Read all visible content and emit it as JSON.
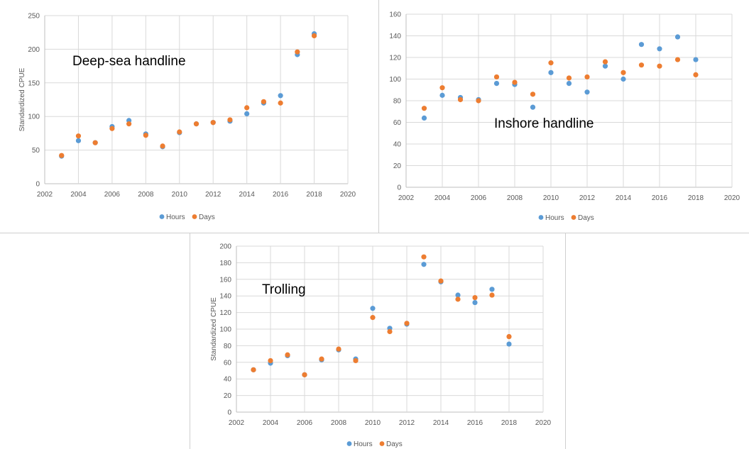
{
  "chart_data": [
    {
      "type": "scatter",
      "title": "Deep-sea handline",
      "ylabel": "Standardized CPUE",
      "xlabel": "",
      "xlim": [
        2002,
        2020
      ],
      "ylim": [
        0,
        250
      ],
      "x_ticks": [
        "2002",
        "2004",
        "2006",
        "2008",
        "2010",
        "2012",
        "2014",
        "2016",
        "2018",
        "2020"
      ],
      "y_ticks": [
        "0",
        "50",
        "100",
        "150",
        "200",
        "250"
      ],
      "legend_position": "bottom",
      "x": [
        2003,
        2004,
        2005,
        2006,
        2007,
        2008,
        2009,
        2010,
        2011,
        2012,
        2013,
        2014,
        2015,
        2016,
        2017,
        2018
      ],
      "series": [
        {
          "name": "Hours",
          "color": "#5b9bd5",
          "values": [
            41,
            64,
            61,
            85,
            94,
            74,
            55,
            76,
            89,
            91,
            93,
            104,
            120,
            131,
            192,
            223
          ]
        },
        {
          "name": "Days",
          "color": "#ed7d31",
          "values": [
            42,
            71,
            61,
            82,
            89,
            72,
            56,
            77,
            89,
            91,
            95,
            113,
            122,
            120,
            196,
            220
          ]
        }
      ]
    },
    {
      "type": "scatter",
      "title": "Inshore handline",
      "ylabel": "",
      "xlabel": "",
      "xlim": [
        2002,
        2020
      ],
      "ylim": [
        0,
        160
      ],
      "x_ticks": [
        "2002",
        "2004",
        "2006",
        "2008",
        "2010",
        "2012",
        "2014",
        "2016",
        "2018",
        "2020"
      ],
      "y_ticks": [
        "0",
        "20",
        "40",
        "60",
        "80",
        "100",
        "120",
        "140",
        "160"
      ],
      "legend_position": "bottom",
      "x": [
        2003,
        2004,
        2005,
        2006,
        2007,
        2008,
        2009,
        2010,
        2011,
        2012,
        2013,
        2014,
        2015,
        2016,
        2017,
        2018
      ],
      "series": [
        {
          "name": "Hours",
          "color": "#5b9bd5",
          "values": [
            64,
            85,
            83,
            81,
            96,
            95,
            74,
            106,
            96,
            88,
            112,
            100,
            132,
            128,
            139,
            118
          ]
        },
        {
          "name": "Days",
          "color": "#ed7d31",
          "values": [
            73,
            92,
            81,
            80,
            102,
            97,
            86,
            115,
            101,
            102,
            116,
            106,
            113,
            112,
            118,
            104
          ]
        }
      ]
    },
    {
      "type": "scatter",
      "title": "Trolling",
      "ylabel": "Standardized CPUE",
      "xlabel": "",
      "xlim": [
        2002,
        2020
      ],
      "ylim": [
        0,
        200
      ],
      "x_ticks": [
        "2002",
        "2004",
        "2006",
        "2008",
        "2010",
        "2012",
        "2014",
        "2016",
        "2018",
        "2020"
      ],
      "y_ticks": [
        "0",
        "20",
        "40",
        "60",
        "80",
        "100",
        "120",
        "140",
        "160",
        "180",
        "200"
      ],
      "legend_position": "bottom",
      "x": [
        2003,
        2004,
        2005,
        2006,
        2007,
        2008,
        2009,
        2010,
        2011,
        2012,
        2013,
        2014,
        2015,
        2016,
        2017,
        2018
      ],
      "series": [
        {
          "name": "Hours",
          "color": "#5b9bd5",
          "values": [
            51,
            59,
            68,
            45,
            63,
            75,
            64,
            125,
            101,
            106,
            178,
            157,
            141,
            132,
            148,
            82
          ]
        },
        {
          "name": "Days",
          "color": "#ed7d31",
          "values": [
            51,
            62,
            69,
            45,
            64,
            76,
            62,
            114,
            97,
            107,
            187,
            158,
            136,
            138,
            141,
            91
          ]
        }
      ]
    }
  ]
}
